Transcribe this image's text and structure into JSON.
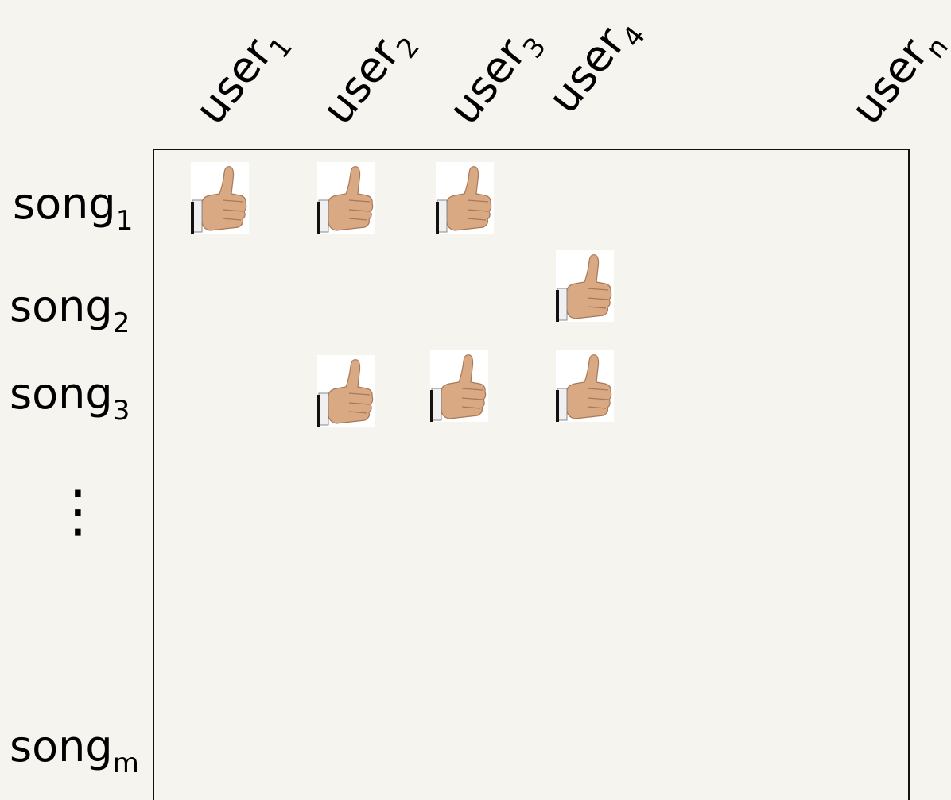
{
  "users": [
    {
      "name": "user",
      "index": "1"
    },
    {
      "name": "user",
      "index": "2"
    },
    {
      "name": "user",
      "index": "3"
    },
    {
      "name": "user",
      "index": "4"
    },
    {
      "name": "user",
      "index": "n"
    }
  ],
  "songs": [
    {
      "name": "song",
      "index": "1"
    },
    {
      "name": "song",
      "index": "2"
    },
    {
      "name": "song",
      "index": "3"
    },
    {
      "name": "song",
      "index": "m"
    }
  ],
  "ellipsis": "⋮"
}
